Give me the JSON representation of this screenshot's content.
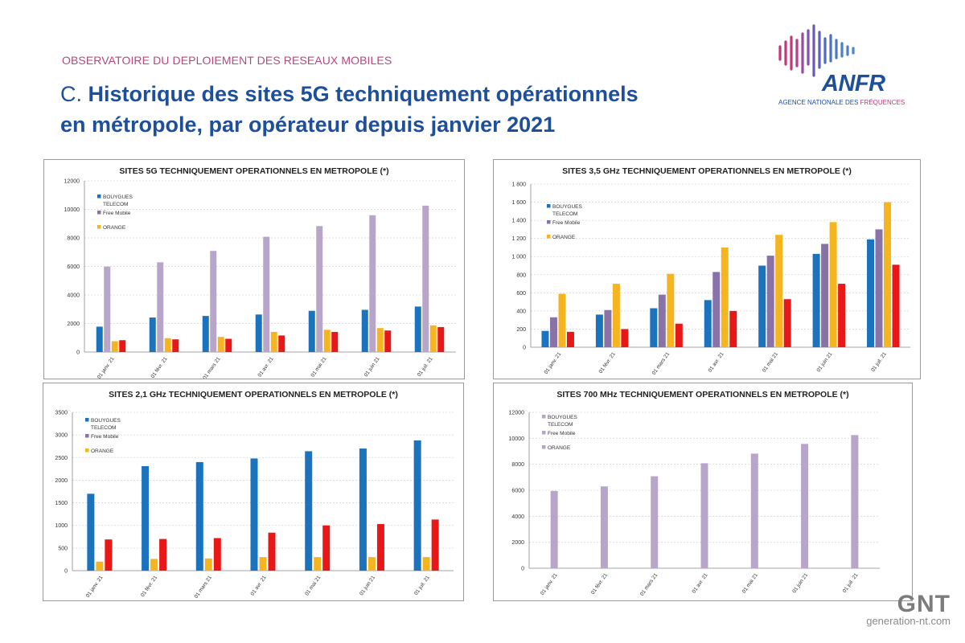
{
  "header": {
    "kicker": "OBSERVATOIRE DU DEPLOIEMENT DES RESEAUX MOBILES",
    "title_prefix": "C. ",
    "title_line1": "Historique des sites 5G techniquement  opérationnels",
    "title_line2": "en métropole, par opérateur depuis janvier 2021"
  },
  "logo": {
    "wordmark": "ANFR",
    "tagline_part1": "AGENCE NATIONALE DES ",
    "tagline_part2": "FRÉQUENCES"
  },
  "watermark": {
    "brand": "GNT",
    "url": "generation-nt.com"
  },
  "colors": {
    "bouygues": "#1b73bd",
    "free": "#8872a8",
    "orange": "#f5b521",
    "sfr": "#e81818",
    "free_700": "#b7a6ca",
    "accent": "#b5487f",
    "title": "#1e4f9a"
  },
  "chart_data": [
    {
      "id": "chart-5g-total",
      "type": "bar",
      "title": "SITES 5G TECHNIQUEMENT OPERATIONNELS EN METROPOLE (*)",
      "categories": [
        "01 janv. 21",
        "01 févr. 21",
        "01 mars 21",
        "01 avr. 21",
        "01 mai 21",
        "01 juin 21",
        "01 juil. 21"
      ],
      "ylim": [
        0,
        12000
      ],
      "yticks": [
        0,
        2000,
        4000,
        6000,
        8000,
        10000,
        12000
      ],
      "ytick_labels": [
        "0",
        "2000",
        "4000",
        "6000",
        "8000",
        "10000",
        "12000"
      ],
      "legend_position": "top-left",
      "legend": [
        {
          "lines": [
            "BOUYGUES",
            "TELECOM"
          ],
          "color": "#1b73bd"
        },
        {
          "lines": [
            "Free Mobile"
          ],
          "color": "#8872a8"
        },
        {
          "lines": [
            "ORANGE"
          ],
          "color": "#f5b521"
        }
      ],
      "series": [
        {
          "color": "#1b73bd",
          "values": [
            1780,
            2420,
            2530,
            2630,
            2890,
            2960,
            3190
          ]
        },
        {
          "color": "#b7a6ca",
          "values": [
            5990,
            6290,
            7090,
            8080,
            8830,
            9590,
            10260
          ]
        },
        {
          "color": "#f5b521",
          "values": [
            760,
            970,
            1060,
            1410,
            1560,
            1680,
            1870
          ]
        },
        {
          "color": "#e81818",
          "values": [
            830,
            890,
            930,
            1160,
            1410,
            1510,
            1750
          ]
        }
      ]
    },
    {
      "id": "chart-35ghz",
      "type": "bar",
      "title": "SITES 3,5 GHz TECHNIQUEMENT OPERATIONNELS EN METROPOLE (*)",
      "categories": [
        "01 janv. 21",
        "01 févr. 21",
        "01 mars 21",
        "01 avr. 21",
        "01 mai 21",
        "01 juin 21",
        "01 juil. 21"
      ],
      "ylim": [
        0,
        1800
      ],
      "yticks": [
        0,
        200,
        400,
        600,
        800,
        1000,
        1200,
        1400,
        1600,
        1800
      ],
      "ytick_labels": [
        "0",
        "200",
        "400",
        "600",
        "800",
        "1 000",
        "1 200",
        "1 400",
        "1 600",
        "1 800"
      ],
      "legend_position": "top-left",
      "legend": [
        {
          "lines": [
            "BOUYGUES",
            "TELECOM"
          ],
          "color": "#1b73bd"
        },
        {
          "lines": [
            "Free Mobile"
          ],
          "color": "#8872a8"
        },
        {
          "lines": [
            "ORANGE"
          ],
          "color": "#f5b521"
        }
      ],
      "series": [
        {
          "color": "#1b73bd",
          "values": [
            180,
            360,
            430,
            520,
            900,
            1030,
            1190
          ]
        },
        {
          "color": "#8872a8",
          "values": [
            330,
            410,
            580,
            830,
            1010,
            1140,
            1300
          ]
        },
        {
          "color": "#f5b521",
          "values": [
            590,
            700,
            810,
            1100,
            1240,
            1380,
            1600
          ]
        },
        {
          "color": "#e81818",
          "values": [
            170,
            200,
            260,
            400,
            530,
            700,
            910
          ]
        }
      ]
    },
    {
      "id": "chart-21ghz",
      "type": "bar",
      "title": "SITES 2,1 GHz TECHNIQUEMENT OPERATIONNELS EN METROPOLE (*)",
      "categories": [
        "01 janv. 21",
        "01 févr. 21",
        "01 mars 21",
        "01 avr. 21",
        "01 mai 21",
        "01 juin 21",
        "01 juil. 21"
      ],
      "ylim": [
        0,
        3500
      ],
      "yticks": [
        0,
        500,
        1000,
        1500,
        2000,
        2500,
        3000,
        3500
      ],
      "ytick_labels": [
        "0",
        "500",
        "1000",
        "1500",
        "2000",
        "2500",
        "3000",
        "3500"
      ],
      "legend_position": "top-left",
      "legend": [
        {
          "lines": [
            "BOUYGUES",
            "TELECOM"
          ],
          "color": "#1b73bd"
        },
        {
          "lines": [
            "Free Mobile"
          ],
          "color": "#8872a8"
        },
        {
          "lines": [
            "ORANGE"
          ],
          "color": "#f5b521"
        }
      ],
      "series": [
        {
          "color": "#1b73bd",
          "values": [
            1700,
            2310,
            2400,
            2480,
            2640,
            2700,
            2880
          ]
        },
        {
          "color": "#f5b521",
          "values": [
            200,
            260,
            270,
            300,
            300,
            300,
            300
          ]
        },
        {
          "color": "#e81818",
          "values": [
            690,
            700,
            720,
            840,
            1000,
            1030,
            1130
          ]
        }
      ]
    },
    {
      "id": "chart-700mhz",
      "type": "bar",
      "title": "SITES 700 MHz TECHNIQUEMENT OPERATIONNELS EN METROPOLE (*)",
      "categories": [
        "01 janv. 21",
        "01 févr. 21",
        "01 mars 21",
        "01 avr. 21",
        "01 mai 21",
        "01 juin 21",
        "01 juil. 21"
      ],
      "ylim": [
        0,
        12000
      ],
      "yticks": [
        0,
        2000,
        4000,
        6000,
        8000,
        10000,
        12000
      ],
      "ytick_labels": [
        "0",
        "2000",
        "4000",
        "6000",
        "8000",
        "10000",
        "12000"
      ],
      "legend_position": "top-left",
      "legend": [
        {
          "lines": [
            "BOUYGUES",
            "TELECOM"
          ],
          "color": "#b7a6ca"
        },
        {
          "lines": [
            "Free Mobile"
          ],
          "color": "#b7a6ca"
        },
        {
          "lines": [
            "ORANGE"
          ],
          "color": "#b7a6ca"
        }
      ],
      "series": [
        {
          "color": "#b7a6ca",
          "values": [
            5950,
            6300,
            7080,
            8080,
            8820,
            9570,
            10250
          ]
        }
      ]
    }
  ]
}
